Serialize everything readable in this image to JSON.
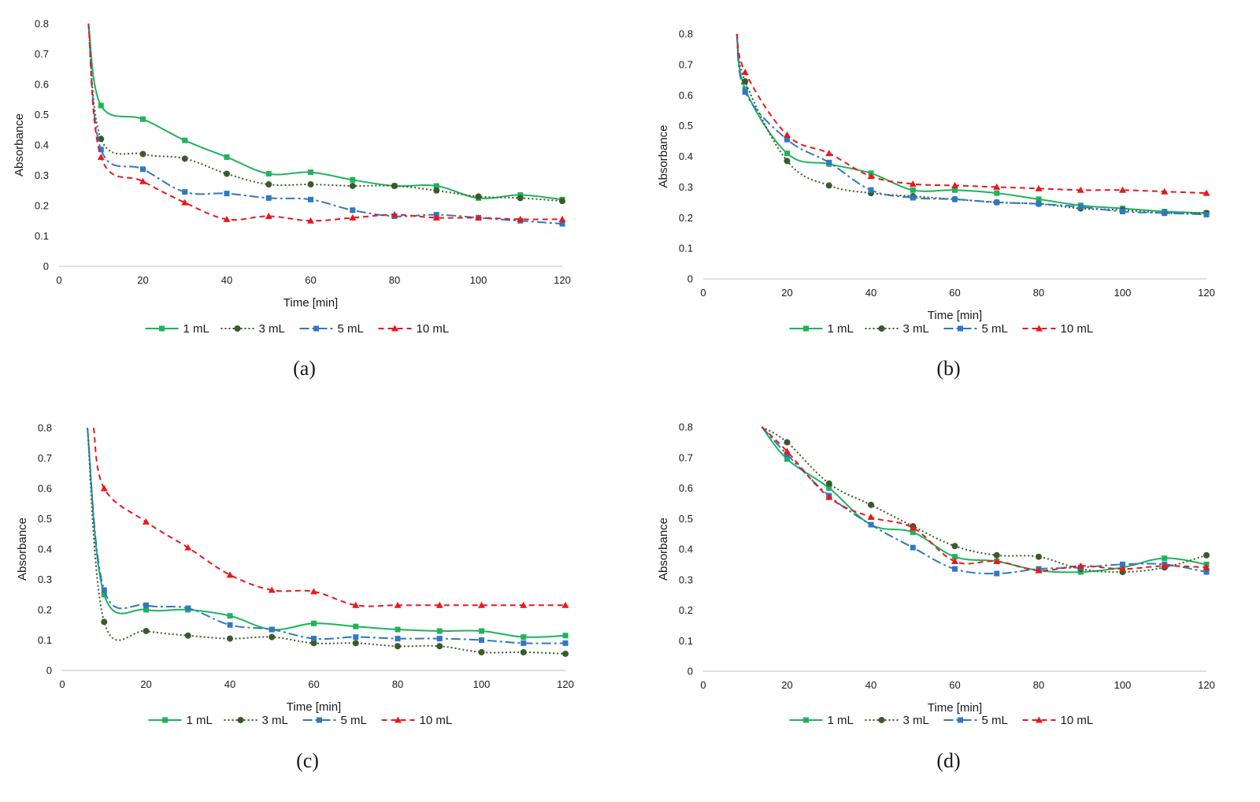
{
  "figure": {
    "panels": [
      {
        "label": "(a)",
        "letter": "a"
      },
      {
        "label": "(b)",
        "letter": "b"
      },
      {
        "label": "(c)",
        "letter": "c"
      },
      {
        "label": "(d)",
        "letter": "d"
      }
    ]
  },
  "series_styles": [
    {
      "name": "1 mL",
      "color": "#1fb35a",
      "dash": "",
      "marker": "square"
    },
    {
      "name": "3 mL",
      "color": "#3a5a2c",
      "dash": "2,3",
      "marker": "circle"
    },
    {
      "name": "5 mL",
      "color": "#2f78c4",
      "dash": "12,4,3,4",
      "marker": "square"
    },
    {
      "name": "10 mL",
      "color": "#e8191d",
      "dash": "7,5",
      "marker": "triangle"
    }
  ],
  "chart_data": [
    {
      "type": "line",
      "panel": "(a)",
      "xlabel": "Time [min]",
      "ylabel": "Absorbance",
      "xlim": [
        0,
        120
      ],
      "ylim": [
        0,
        0.8
      ],
      "xticks": [
        "0",
        "20",
        "40",
        "60",
        "80",
        "100",
        "120"
      ],
      "yticks": [
        "0",
        "0.1",
        "0.2",
        "0.3",
        "0.4",
        "0.5",
        "0.6",
        "0.7",
        "0.8"
      ],
      "series": [
        {
          "name": "1 mL",
          "x": [
            7,
            10,
            20,
            30,
            40,
            50,
            60,
            70,
            80,
            90,
            100,
            110,
            120
          ],
          "y": [
            0.8,
            0.53,
            0.485,
            0.415,
            0.36,
            0.305,
            0.31,
            0.285,
            0.265,
            0.265,
            0.225,
            0.235,
            0.22
          ]
        },
        {
          "name": "3 mL",
          "x": [
            7,
            10,
            20,
            30,
            40,
            50,
            60,
            70,
            80,
            90,
            100,
            110,
            120
          ],
          "y": [
            0.8,
            0.42,
            0.37,
            0.355,
            0.305,
            0.27,
            0.27,
            0.265,
            0.265,
            0.25,
            0.23,
            0.225,
            0.215
          ]
        },
        {
          "name": "5 mL",
          "x": [
            7,
            10,
            20,
            30,
            40,
            50,
            60,
            70,
            80,
            90,
            100,
            110,
            120
          ],
          "y": [
            0.8,
            0.385,
            0.32,
            0.245,
            0.24,
            0.225,
            0.22,
            0.185,
            0.165,
            0.17,
            0.16,
            0.15,
            0.14
          ]
        },
        {
          "name": "10 mL",
          "x": [
            7,
            10,
            20,
            30,
            40,
            50,
            60,
            70,
            80,
            90,
            100,
            110,
            120
          ],
          "y": [
            0.8,
            0.36,
            0.28,
            0.21,
            0.155,
            0.165,
            0.15,
            0.16,
            0.17,
            0.16,
            0.16,
            0.155,
            0.155
          ]
        }
      ]
    },
    {
      "type": "line",
      "panel": "(b)",
      "xlabel": "Time [min]",
      "ylabel": "Absorbance",
      "xlim": [
        0,
        120
      ],
      "ylim": [
        0,
        0.8
      ],
      "xticks": [
        "0",
        "20",
        "40",
        "60",
        "80",
        "100",
        "120"
      ],
      "yticks": [
        "0",
        "0.1",
        "0.2",
        "0.3",
        "0.4",
        "0.5",
        "0.6",
        "0.7",
        "0.8"
      ],
      "series": [
        {
          "name": "1 mL",
          "x": [
            8,
            10,
            20,
            30,
            40,
            50,
            60,
            70,
            80,
            90,
            100,
            110,
            120
          ],
          "y": [
            0.8,
            0.62,
            0.41,
            0.375,
            0.345,
            0.29,
            0.29,
            0.28,
            0.26,
            0.24,
            0.23,
            0.22,
            0.215
          ]
        },
        {
          "name": "3 mL",
          "x": [
            8,
            10,
            20,
            30,
            40,
            50,
            60,
            70,
            80,
            90,
            100,
            110,
            120
          ],
          "y": [
            0.8,
            0.645,
            0.385,
            0.305,
            0.28,
            0.27,
            0.26,
            0.25,
            0.245,
            0.23,
            0.225,
            0.215,
            0.215
          ]
        },
        {
          "name": "5 mL",
          "x": [
            8,
            10,
            20,
            30,
            40,
            50,
            60,
            70,
            80,
            90,
            100,
            110,
            120
          ],
          "y": [
            0.8,
            0.61,
            0.455,
            0.38,
            0.29,
            0.265,
            0.26,
            0.25,
            0.245,
            0.235,
            0.22,
            0.215,
            0.21
          ]
        },
        {
          "name": "10 mL",
          "x": [
            8,
            10,
            20,
            30,
            40,
            50,
            60,
            70,
            80,
            90,
            100,
            110,
            120
          ],
          "y": [
            0.8,
            0.675,
            0.47,
            0.41,
            0.335,
            0.31,
            0.305,
            0.3,
            0.295,
            0.29,
            0.29,
            0.285,
            0.28
          ]
        }
      ]
    },
    {
      "type": "line",
      "panel": "(c)",
      "xlabel": "Time [min]",
      "ylabel": "Absorbance",
      "xlim": [
        0,
        120
      ],
      "ylim": [
        0,
        0.8
      ],
      "xticks": [
        "0",
        "20",
        "40",
        "60",
        "80",
        "100",
        "120"
      ],
      "yticks": [
        "0",
        "0.1",
        "0.2",
        "0.3",
        "0.4",
        "0.5",
        "0.6",
        "0.7",
        "0.8"
      ],
      "series": [
        {
          "name": "1 mL",
          "x": [
            6,
            10,
            20,
            30,
            40,
            50,
            60,
            70,
            80,
            90,
            100,
            110,
            120
          ],
          "y": [
            0.8,
            0.25,
            0.2,
            0.2,
            0.18,
            0.135,
            0.155,
            0.145,
            0.135,
            0.13,
            0.13,
            0.11,
            0.115
          ]
        },
        {
          "name": "3 mL",
          "x": [
            6,
            10,
            20,
            30,
            40,
            50,
            60,
            70,
            80,
            90,
            100,
            110,
            120
          ],
          "y": [
            0.8,
            0.16,
            0.13,
            0.115,
            0.105,
            0.11,
            0.09,
            0.09,
            0.08,
            0.08,
            0.06,
            0.06,
            0.055
          ]
        },
        {
          "name": "5 mL",
          "x": [
            6,
            10,
            20,
            30,
            40,
            50,
            60,
            70,
            80,
            90,
            100,
            110,
            120
          ],
          "y": [
            0.8,
            0.265,
            0.215,
            0.205,
            0.15,
            0.135,
            0.105,
            0.11,
            0.105,
            0.105,
            0.1,
            0.09,
            0.09
          ]
        },
        {
          "name": "10 mL",
          "x": [
            7.5,
            10,
            20,
            30,
            40,
            50,
            60,
            70,
            80,
            90,
            100,
            110,
            120
          ],
          "y": [
            0.8,
            0.6,
            0.49,
            0.405,
            0.315,
            0.265,
            0.26,
            0.215,
            0.215,
            0.215,
            0.215,
            0.215,
            0.215
          ]
        }
      ]
    },
    {
      "type": "line",
      "panel": "(d)",
      "xlabel": "Time [min]",
      "ylabel": "Absorbance",
      "xlim": [
        0,
        120
      ],
      "ylim": [
        0,
        0.8
      ],
      "xticks": [
        "0",
        "20",
        "40",
        "60",
        "80",
        "100",
        "120"
      ],
      "yticks": [
        "0",
        "0.1",
        "0.2",
        "0.3",
        "0.4",
        "0.5",
        "0.6",
        "0.7",
        "0.8"
      ],
      "series": [
        {
          "name": "1 mL",
          "x": [
            14,
            20,
            30,
            40,
            50,
            60,
            70,
            80,
            90,
            100,
            110,
            120
          ],
          "y": [
            0.8,
            0.695,
            0.6,
            0.48,
            0.455,
            0.375,
            0.36,
            0.33,
            0.325,
            0.34,
            0.37,
            0.35
          ]
        },
        {
          "name": "3 mL",
          "x": [
            14,
            20,
            30,
            40,
            50,
            60,
            70,
            80,
            90,
            100,
            110,
            120
          ],
          "y": [
            0.8,
            0.75,
            0.615,
            0.545,
            0.475,
            0.41,
            0.38,
            0.375,
            0.335,
            0.325,
            0.34,
            0.38
          ]
        },
        {
          "name": "5 mL",
          "x": [
            14,
            20,
            30,
            40,
            50,
            60,
            70,
            80,
            90,
            100,
            110,
            120
          ],
          "y": [
            0.8,
            0.71,
            0.575,
            0.48,
            0.405,
            0.335,
            0.32,
            0.335,
            0.34,
            0.35,
            0.35,
            0.325
          ]
        },
        {
          "name": "10 mL",
          "x": [
            14,
            20,
            30,
            40,
            50,
            60,
            70,
            80,
            90,
            100,
            110,
            120
          ],
          "y": [
            0.8,
            0.72,
            0.57,
            0.505,
            0.47,
            0.36,
            0.36,
            0.33,
            0.345,
            0.335,
            0.345,
            0.34
          ]
        }
      ]
    }
  ]
}
